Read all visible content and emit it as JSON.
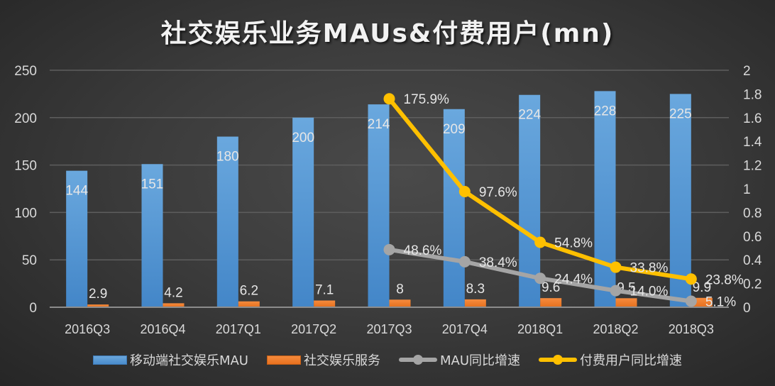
{
  "chart_data": {
    "type": "bar",
    "title": "社交娱乐业务MAUs&付费用户(mn)",
    "categories": [
      "2016Q3",
      "2016Q4",
      "2017Q1",
      "2017Q2",
      "2017Q3",
      "2017Q4",
      "2018Q1",
      "2018Q2",
      "2018Q3"
    ],
    "series": [
      {
        "name": "移动端社交娱乐MAU",
        "type": "bar",
        "axis": "left",
        "color": "#5B9BD5",
        "values": [
          144,
          151,
          180,
          200,
          214,
          209,
          224,
          228,
          225
        ],
        "labels": [
          "144",
          "151",
          "180",
          "200",
          "214",
          "209",
          "224",
          "228",
          "225"
        ]
      },
      {
        "name": "社交娱乐服务",
        "type": "bar",
        "axis": "left",
        "color": "#ED7D31",
        "values": [
          2.9,
          4.2,
          6.2,
          7.1,
          8,
          8.3,
          9.6,
          9.5,
          9.9
        ],
        "labels": [
          "2.9",
          "4.2",
          "6.2",
          "7.1",
          "8",
          "8.3",
          "9.6",
          "9.5",
          "9.9"
        ]
      },
      {
        "name": "MAU同比增速",
        "type": "line",
        "axis": "right",
        "color": "#A5A5A5",
        "values": [
          null,
          null,
          null,
          null,
          0.486,
          0.384,
          0.244,
          0.14,
          0.051
        ],
        "labels": [
          "",
          "",
          "",
          "",
          "48.6%",
          "38.4%",
          "24.4%",
          "14.0%",
          "5.1%"
        ]
      },
      {
        "name": "付费用户同比增速",
        "type": "line",
        "axis": "right",
        "color": "#FFC000",
        "values": [
          null,
          null,
          null,
          null,
          1.759,
          0.976,
          0.548,
          0.338,
          0.238
        ],
        "labels": [
          "",
          "",
          "",
          "",
          "175.9%",
          "97.6%",
          "54.8%",
          "33.8%",
          "23.8%"
        ]
      }
    ],
    "y_left": {
      "ylim": [
        0,
        250
      ],
      "ticks": [
        "0",
        "50",
        "100",
        "150",
        "200",
        "250"
      ]
    },
    "y_right": {
      "ylim": [
        0,
        2
      ],
      "ticks": [
        "0",
        "0.2",
        "0.4",
        "0.6",
        "0.8",
        "1",
        "1.2",
        "1.4",
        "1.6",
        "1.8",
        "2"
      ]
    },
    "xlabel": "",
    "ylabel": "",
    "grid": true,
    "legend_position": "bottom"
  },
  "title": "社交娱乐业务MAUs&付费用户(mn)",
  "legend": [
    {
      "label": "移动端社交娱乐MAU",
      "kind": "bar",
      "color": "#5B9BD5"
    },
    {
      "label": "社交娱乐服务",
      "kind": "bar",
      "color": "#ED7D31"
    },
    {
      "label": "MAU同比增速",
      "kind": "line",
      "color": "#A5A5A5"
    },
    {
      "label": "付费用户同比增速",
      "kind": "line",
      "color": "#FFC000"
    }
  ]
}
